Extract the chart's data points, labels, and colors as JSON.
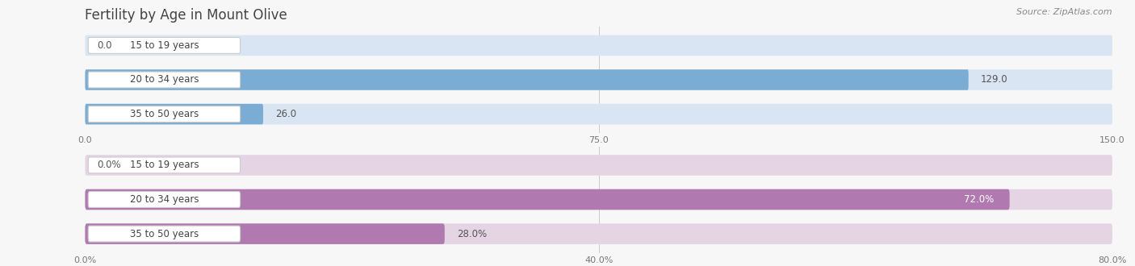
{
  "title": "Fertility by Age in Mount Olive",
  "source": "Source: ZipAtlas.com",
  "top_chart": {
    "categories": [
      "15 to 19 years",
      "20 to 34 years",
      "35 to 50 years"
    ],
    "values": [
      0.0,
      129.0,
      26.0
    ],
    "bar_color": "#7BADD4",
    "bar_bg_color": "#D9E5F3",
    "xlim": [
      0,
      150
    ],
    "xticks": [
      0.0,
      75.0,
      150.0
    ],
    "xtick_labels": [
      "0.0",
      "75.0",
      "150.0"
    ]
  },
  "bottom_chart": {
    "categories": [
      "15 to 19 years",
      "20 to 34 years",
      "35 to 50 years"
    ],
    "values": [
      0.0,
      72.0,
      28.0
    ],
    "bar_color": "#B07AB0",
    "bar_bg_color": "#E4D4E4",
    "xlim": [
      0,
      80
    ],
    "xticks": [
      0.0,
      40.0,
      80.0
    ],
    "xtick_labels": [
      "0.0%",
      "40.0%",
      "80.0%"
    ]
  },
  "fig_bg_color": "#f7f7f7",
  "label_font_size": 8.5,
  "cat_font_size": 8.5,
  "title_font_size": 12,
  "source_font_size": 8,
  "tick_font_size": 8
}
